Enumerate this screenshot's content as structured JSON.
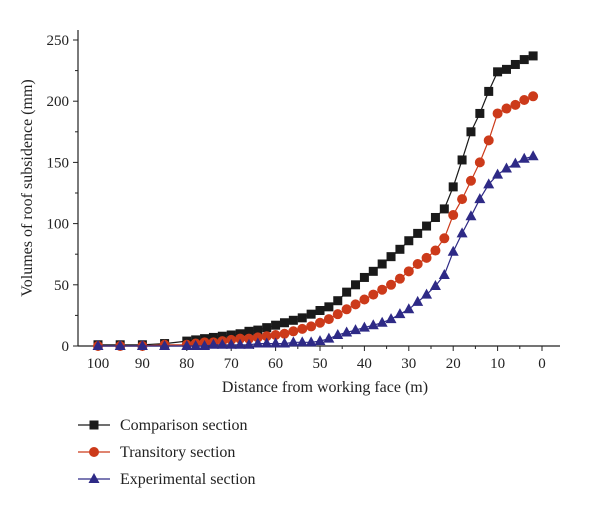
{
  "chart_data": {
    "type": "line",
    "xlabel": "Distance from working face (m)",
    "ylabel": "Volumes of roof subsidence (mm)",
    "xlim": [
      100,
      0
    ],
    "ylim": [
      0,
      250
    ],
    "x_reversed": true,
    "xticks": [
      100,
      90,
      80,
      70,
      60,
      50,
      40,
      30,
      20,
      10,
      0
    ],
    "yticks": [
      0,
      50,
      100,
      150,
      200,
      250
    ],
    "grid": false,
    "legend_position": "bottom-left",
    "series": [
      {
        "name": "Comparison section",
        "color": "#1a1a1a",
        "marker": "square",
        "x": [
          100,
          95,
          90,
          85,
          80,
          78,
          76,
          74,
          72,
          70,
          68,
          66,
          64,
          62,
          60,
          58,
          56,
          54,
          52,
          50,
          48,
          46,
          44,
          42,
          40,
          38,
          36,
          34,
          32,
          30,
          28,
          26,
          24,
          22,
          20,
          18,
          16,
          14,
          12,
          10,
          8,
          6,
          4,
          2
        ],
        "values": [
          1,
          1,
          1,
          2,
          4,
          5,
          6,
          7,
          8,
          9,
          10,
          12,
          13,
          15,
          17,
          19,
          21,
          23,
          26,
          29,
          32,
          37,
          44,
          50,
          56,
          61,
          67,
          73,
          79,
          86,
          92,
          98,
          105,
          112,
          130,
          152,
          175,
          190,
          208,
          224,
          226,
          230,
          234,
          237
        ]
      },
      {
        "name": "Transitory section",
        "color": "#cc3a1a",
        "marker": "circle",
        "x": [
          100,
          95,
          90,
          85,
          80,
          78,
          76,
          74,
          72,
          70,
          68,
          66,
          64,
          62,
          60,
          58,
          56,
          54,
          52,
          50,
          48,
          46,
          44,
          42,
          40,
          38,
          36,
          34,
          32,
          30,
          28,
          26,
          24,
          22,
          20,
          18,
          16,
          14,
          12,
          10,
          8,
          6,
          4,
          2
        ],
        "values": [
          0,
          0,
          0,
          1,
          1,
          2,
          3,
          3,
          4,
          5,
          6,
          6,
          7,
          8,
          9,
          10,
          12,
          14,
          16,
          19,
          22,
          26,
          30,
          34,
          38,
          42,
          46,
          50,
          55,
          61,
          67,
          72,
          78,
          88,
          107,
          120,
          135,
          150,
          168,
          190,
          194,
          197,
          201,
          204
        ]
      },
      {
        "name": "Experimental section",
        "color": "#2e2a86",
        "marker": "triangle",
        "x": [
          100,
          95,
          90,
          85,
          80,
          78,
          76,
          74,
          72,
          70,
          68,
          66,
          64,
          62,
          60,
          58,
          56,
          54,
          52,
          50,
          48,
          46,
          44,
          42,
          40,
          38,
          36,
          34,
          32,
          30,
          28,
          26,
          24,
          22,
          20,
          18,
          16,
          14,
          12,
          10,
          8,
          6,
          4,
          2
        ],
        "values": [
          0,
          0,
          0,
          0,
          0,
          0,
          0,
          1,
          1,
          1,
          1,
          1,
          2,
          2,
          2,
          2,
          3,
          3,
          3,
          4,
          6,
          9,
          11,
          13,
          15,
          17,
          19,
          22,
          26,
          30,
          36,
          42,
          49,
          58,
          77,
          92,
          106,
          120,
          132,
          140,
          145,
          149,
          153,
          155
        ]
      }
    ]
  }
}
